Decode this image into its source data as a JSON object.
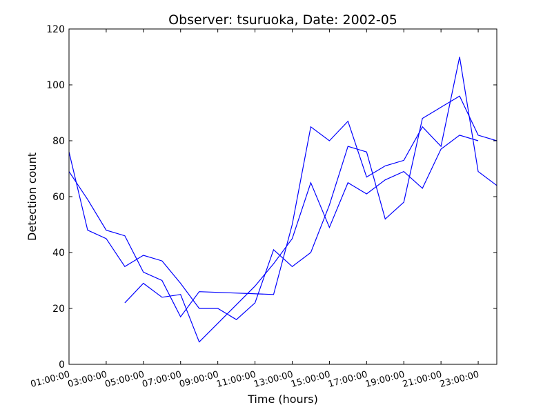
{
  "chart_data": {
    "type": "line",
    "title": "Observer: tsuruoka, Date: 2002-05",
    "xlabel": "Time (hours)",
    "ylabel": "Detection count",
    "xlim": [
      1,
      24
    ],
    "ylim": [
      0,
      120
    ],
    "x_tick_values": [
      1,
      3,
      5,
      7,
      9,
      11,
      13,
      15,
      17,
      19,
      21,
      23
    ],
    "x_tick_labels": [
      "01:00:00",
      "03:00:00",
      "05:00:00",
      "07:00:00",
      "09:00:00",
      "11:00:00",
      "13:00:00",
      "15:00:00",
      "17:00:00",
      "19:00:00",
      "21:00:00",
      "23:00:00"
    ],
    "y_ticks": [
      0,
      20,
      40,
      60,
      80,
      100,
      120
    ],
    "grid": false,
    "line_color": "#0000ff",
    "series": [
      {
        "x": [
          1,
          2,
          3,
          4,
          5,
          6,
          7,
          8,
          9,
          10,
          11,
          12,
          13,
          14,
          15,
          16,
          17,
          18,
          19,
          20,
          21,
          22,
          23,
          24
        ],
        "y": [
          76,
          48,
          45,
          35,
          39,
          37,
          29,
          20,
          20,
          16,
          22,
          41,
          35,
          40,
          57,
          78,
          76,
          52,
          58,
          88,
          92,
          96,
          82,
          80
        ]
      },
      {
        "x": [
          1,
          2,
          3,
          4,
          5,
          6,
          7,
          8,
          12,
          13,
          14,
          15,
          16,
          17,
          18,
          19,
          20,
          21,
          22,
          23,
          24
        ],
        "y": [
          69,
          59,
          48,
          46,
          33,
          30,
          17,
          26,
          25,
          50,
          85,
          80,
          87,
          67,
          71,
          73,
          85,
          78,
          110,
          69,
          64
        ]
      },
      {
        "x": [
          4,
          5,
          6,
          7,
          8,
          11,
          12,
          13,
          14,
          15,
          16,
          17,
          18,
          19,
          20,
          21,
          22,
          23
        ],
        "y": [
          22,
          29,
          24,
          25,
          8,
          28,
          36,
          45,
          65,
          49,
          65,
          61,
          66,
          69,
          63,
          77,
          82,
          80
        ]
      }
    ]
  }
}
